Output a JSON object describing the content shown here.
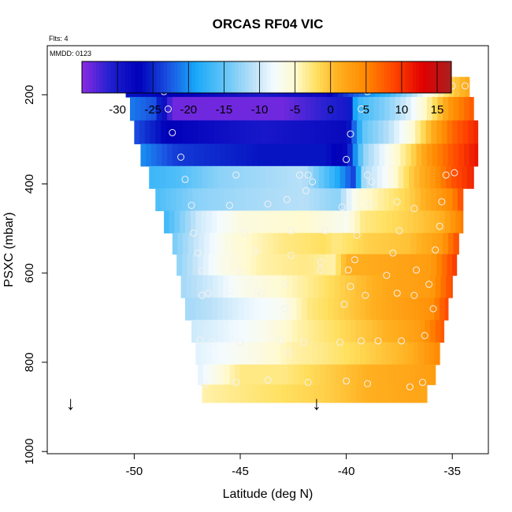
{
  "title": "ORCAS RF04 VIC",
  "top_left_note": "Flts: 4",
  "inset_note": "MMDD: 0123",
  "chart_data": {
    "type": "heatmap",
    "title": "ORCAS RF04 VIC",
    "xlabel": "Latitude (deg N)",
    "ylabel": "PSXC (mbar)",
    "xlim": [
      -54.1,
      -33.3
    ],
    "ylim": [
      1005,
      90
    ],
    "x_ticks": [
      -50,
      -45,
      -40,
      -35
    ],
    "x_tick_labels": [
      "-50",
      "-45",
      "-40",
      "-35"
    ],
    "y_ticks": [
      200,
      400,
      600,
      800,
      1000
    ],
    "y_tick_labels": [
      "200",
      "400",
      "600",
      "800",
      "1000"
    ],
    "colorbar": {
      "min": -35,
      "max": 17,
      "ticks": [
        -30,
        -25,
        -20,
        -15,
        -10,
        -5,
        0,
        5,
        10,
        15
      ],
      "tick_labels": [
        "-30",
        "-25",
        "-20",
        "-15",
        "-10",
        "-5",
        "0",
        "5",
        "10",
        "15"
      ],
      "stops": [
        [
          -35,
          "#8a2be2"
        ],
        [
          -31,
          "#2020d0"
        ],
        [
          -27,
          "#0000b8"
        ],
        [
          -23,
          "#1a4ee0"
        ],
        [
          -19,
          "#18a8f8"
        ],
        [
          -15,
          "#60c4f8"
        ],
        [
          -11,
          "#b8e0f8"
        ],
        [
          -8,
          "#f4fbff"
        ],
        [
          -5,
          "#fffad0"
        ],
        [
          -2,
          "#ffe060"
        ],
        [
          1,
          "#ffb020"
        ],
        [
          5,
          "#ff8800"
        ],
        [
          9,
          "#ff4400"
        ],
        [
          13,
          "#e00000"
        ],
        [
          17,
          "#a82020"
        ]
      ]
    },
    "grid": false,
    "pressure_levels": [
      180,
      230,
      285,
      335,
      385,
      435,
      485,
      535,
      580,
      630,
      680,
      730,
      780,
      830,
      870
    ],
    "rows": [
      {
        "p": 180,
        "lat_min": -50.4,
        "lat_max": -34.2,
        "anchors": [
          [
            -50.4,
            -26
          ],
          [
            -48,
            -27
          ],
          [
            -44,
            -30
          ],
          [
            -41,
            -28
          ],
          [
            -39.5,
            -22
          ],
          [
            -38,
            -17
          ],
          [
            -37,
            -12
          ],
          [
            -36,
            -6
          ],
          [
            -35,
            -1
          ],
          [
            -34.2,
            2
          ]
        ]
      },
      {
        "p": 230,
        "lat_min": -50.2,
        "lat_max": -34.0,
        "anchors": [
          [
            -50.2,
            -21
          ],
          [
            -49,
            -23
          ],
          [
            -48.2,
            -34
          ],
          [
            -43,
            -34
          ],
          [
            -40,
            -30
          ],
          [
            -39.5,
            -17
          ],
          [
            -38,
            -13
          ],
          [
            -37,
            -9
          ],
          [
            -36,
            -3
          ],
          [
            -35,
            4
          ],
          [
            -34,
            8
          ]
        ]
      },
      {
        "p": 285,
        "lat_min": -50.0,
        "lat_max": -33.8,
        "anchors": [
          [
            -50,
            -23
          ],
          [
            -48.5,
            -27
          ],
          [
            -44,
            -30
          ],
          [
            -40,
            -28
          ],
          [
            -39.2,
            -15
          ],
          [
            -38,
            -11
          ],
          [
            -37,
            -6
          ],
          [
            -36,
            1
          ],
          [
            -35,
            7
          ],
          [
            -33.8,
            11
          ]
        ]
      },
      {
        "p": 335,
        "lat_min": -49.7,
        "lat_max": -33.8,
        "anchors": [
          [
            -49.7,
            -20
          ],
          [
            -48,
            -24
          ],
          [
            -44,
            -26
          ],
          [
            -41,
            -26
          ],
          [
            -40,
            -28
          ],
          [
            -39.2,
            -13
          ],
          [
            -38,
            -7
          ],
          [
            -37,
            -2
          ],
          [
            -36,
            4
          ],
          [
            -35,
            8
          ],
          [
            -33.8,
            12
          ]
        ]
      },
      {
        "p": 385,
        "lat_min": -49.3,
        "lat_max": -34.0,
        "anchors": [
          [
            -49.3,
            -17
          ],
          [
            -48,
            -16
          ],
          [
            -46,
            -13
          ],
          [
            -42,
            -11
          ],
          [
            -40.5,
            -18
          ],
          [
            -39.6,
            -24
          ],
          [
            -39.2,
            -12
          ],
          [
            -38,
            -7
          ],
          [
            -37,
            -1
          ],
          [
            -36,
            3
          ],
          [
            -35,
            8
          ],
          [
            -34,
            11
          ]
        ]
      },
      {
        "p": 435,
        "lat_min": -49.0,
        "lat_max": -34.5,
        "anchors": [
          [
            -49,
            -16
          ],
          [
            -47,
            -13
          ],
          [
            -45,
            -12
          ],
          [
            -42,
            -11
          ],
          [
            -40.4,
            -13
          ],
          [
            -39.5,
            -6
          ],
          [
            -38,
            -3
          ],
          [
            -37,
            -1
          ],
          [
            -36,
            2
          ],
          [
            -35,
            5
          ],
          [
            -34.5,
            9
          ]
        ]
      },
      {
        "p": 485,
        "lat_min": -48.6,
        "lat_max": -34.5,
        "anchors": [
          [
            -48.6,
            -17
          ],
          [
            -47,
            -10
          ],
          [
            -45,
            -6
          ],
          [
            -42,
            -5
          ],
          [
            -40,
            -7
          ],
          [
            -39.2,
            -3
          ],
          [
            -37,
            -1
          ],
          [
            -35.5,
            1
          ],
          [
            -34.5,
            6
          ]
        ]
      },
      {
        "p": 535,
        "lat_min": -48.2,
        "lat_max": -34.7,
        "anchors": [
          [
            -48.2,
            -14
          ],
          [
            -47,
            -10
          ],
          [
            -45.5,
            -6
          ],
          [
            -43,
            -3
          ],
          [
            -41,
            -2
          ],
          [
            -40.5,
            -3
          ],
          [
            -39,
            -1
          ],
          [
            -37,
            0
          ],
          [
            -35.5,
            3
          ],
          [
            -34.7,
            9
          ]
        ]
      },
      {
        "p": 580,
        "lat_min": -48.0,
        "lat_max": -34.8,
        "anchors": [
          [
            -48,
            -13
          ],
          [
            -47,
            -10
          ],
          [
            -46,
            -7
          ],
          [
            -44,
            -4
          ],
          [
            -42,
            -3
          ],
          [
            -40.6,
            -4
          ],
          [
            -40,
            1
          ],
          [
            -38,
            2
          ],
          [
            -36,
            3
          ],
          [
            -34.8,
            10
          ]
        ]
      },
      {
        "p": 630,
        "lat_min": -47.8,
        "lat_max": -35.0,
        "anchors": [
          [
            -47.8,
            -12
          ],
          [
            -46.5,
            -10
          ],
          [
            -45,
            -7
          ],
          [
            -43,
            -5
          ],
          [
            -41.5,
            -3
          ],
          [
            -40.2,
            -1
          ],
          [
            -38,
            2
          ],
          [
            -36,
            3
          ],
          [
            -35,
            9
          ]
        ]
      },
      {
        "p": 680,
        "lat_min": -47.6,
        "lat_max": -35.2,
        "anchors": [
          [
            -47.6,
            -12
          ],
          [
            -46.5,
            -11
          ],
          [
            -45,
            -9
          ],
          [
            -43,
            -7
          ],
          [
            -41.8,
            -3
          ],
          [
            -40.2,
            -1
          ],
          [
            -38,
            2
          ],
          [
            -36,
            4
          ],
          [
            -35.2,
            9
          ]
        ]
      },
      {
        "p": 730,
        "lat_min": -47.3,
        "lat_max": -35.4,
        "anchors": [
          [
            -47.3,
            -10
          ],
          [
            -46,
            -9
          ],
          [
            -44,
            -7
          ],
          [
            -42.2,
            -4
          ],
          [
            -40.5,
            -2
          ],
          [
            -38,
            1
          ],
          [
            -36.5,
            3
          ],
          [
            -35.4,
            8
          ]
        ]
      },
      {
        "p": 780,
        "lat_min": -47.1,
        "lat_max": -35.6,
        "anchors": [
          [
            -47.1,
            -9
          ],
          [
            -46,
            -8
          ],
          [
            -44,
            -6
          ],
          [
            -42.5,
            -4
          ],
          [
            -41,
            -3
          ],
          [
            -39,
            -1
          ],
          [
            -37,
            1
          ],
          [
            -35.6,
            5
          ]
        ]
      },
      {
        "p": 830,
        "lat_min": -47.0,
        "lat_max": -35.8,
        "anchors": [
          [
            -47,
            -9
          ],
          [
            -46,
            -6
          ],
          [
            -45,
            -3
          ],
          [
            -43,
            -3
          ],
          [
            -41,
            -1
          ],
          [
            -39,
            1
          ],
          [
            -37,
            2
          ],
          [
            -35.8,
            3
          ]
        ]
      },
      {
        "p": 870,
        "lat_min": -46.8,
        "lat_max": -36.2,
        "anchors": [
          [
            -46.8,
            -4
          ],
          [
            -45,
            -3
          ],
          [
            -43,
            -2
          ],
          [
            -41,
            -1
          ],
          [
            -39,
            1
          ],
          [
            -37,
            2
          ],
          [
            -36.2,
            2
          ]
        ]
      }
    ],
    "sample_points": [
      [
        -50.0,
        180
      ],
      [
        -49.6,
        180
      ],
      [
        -49.2,
        180
      ],
      [
        -48.8,
        180
      ],
      [
        -48.6,
        193
      ],
      [
        -39.0,
        193
      ],
      [
        -38.6,
        180
      ],
      [
        -38.0,
        180
      ],
      [
        -37.4,
        180
      ],
      [
        -36.8,
        180
      ],
      [
        -36.2,
        180
      ],
      [
        -35.6,
        180
      ],
      [
        -35.0,
        180
      ],
      [
        -34.4,
        180
      ],
      [
        -48.4,
        232
      ],
      [
        -39.3,
        232
      ],
      [
        -48.2,
        285
      ],
      [
        -39.8,
        288
      ],
      [
        -47.8,
        340
      ],
      [
        -40.0,
        345
      ],
      [
        -47.6,
        390
      ],
      [
        -45.2,
        380
      ],
      [
        -42.2,
        380
      ],
      [
        -41.8,
        380
      ],
      [
        -41.6,
        395
      ],
      [
        -39.0,
        380
      ],
      [
        -38.8,
        395
      ],
      [
        -35.3,
        380
      ],
      [
        -34.9,
        375
      ],
      [
        -47.3,
        448
      ],
      [
        -45.5,
        448
      ],
      [
        -43.7,
        445
      ],
      [
        -42.8,
        435
      ],
      [
        -41.9,
        415
      ],
      [
        -40.2,
        452
      ],
      [
        -38.9,
        445
      ],
      [
        -37.6,
        440
      ],
      [
        -36.8,
        455
      ],
      [
        -35.5,
        440
      ],
      [
        -47.2,
        510
      ],
      [
        -44.8,
        510
      ],
      [
        -42.6,
        505
      ],
      [
        -41.0,
        505
      ],
      [
        -39.5,
        515
      ],
      [
        -37.5,
        505
      ],
      [
        -35.6,
        495
      ],
      [
        -47.0,
        555
      ],
      [
        -44.3,
        550
      ],
      [
        -42.6,
        560
      ],
      [
        -41.2,
        575
      ],
      [
        -39.6,
        570
      ],
      [
        -37.8,
        555
      ],
      [
        -35.8,
        548
      ],
      [
        -46.8,
        595
      ],
      [
        -45.0,
        598
      ],
      [
        -41.2,
        592
      ],
      [
        -39.9,
        593
      ],
      [
        -38.1,
        605
      ],
      [
        -36.7,
        593
      ],
      [
        -46.5,
        645
      ],
      [
        -45.5,
        640
      ],
      [
        -44.2,
        640
      ],
      [
        -42.9,
        625
      ],
      [
        -39.8,
        630
      ],
      [
        -37.6,
        645
      ],
      [
        -36.1,
        625
      ],
      [
        -46.8,
        650
      ],
      [
        -44.0,
        645
      ],
      [
        -42.9,
        680
      ],
      [
        -40.1,
        670
      ],
      [
        -39.1,
        650
      ],
      [
        -36.8,
        650
      ],
      [
        -35.9,
        680
      ],
      [
        -46.9,
        750
      ],
      [
        -46.3,
        755
      ],
      [
        -45.0,
        755
      ],
      [
        -43.1,
        752
      ],
      [
        -42.0,
        755
      ],
      [
        -40.3,
        755
      ],
      [
        -39.3,
        752
      ],
      [
        -38.5,
        752
      ],
      [
        -37.4,
        752
      ],
      [
        -36.3,
        740
      ],
      [
        -42.7,
        778
      ],
      [
        -46.7,
        850
      ],
      [
        -45.2,
        845
      ],
      [
        -43.7,
        840
      ],
      [
        -41.8,
        845
      ],
      [
        -40.0,
        842
      ],
      [
        -39.0,
        848
      ],
      [
        -37.0,
        855
      ],
      [
        -36.4,
        845
      ]
    ],
    "markers": [
      {
        "lat": -53.0,
        "label": "↓"
      },
      {
        "lat": -41.4,
        "label": "↓"
      }
    ]
  }
}
